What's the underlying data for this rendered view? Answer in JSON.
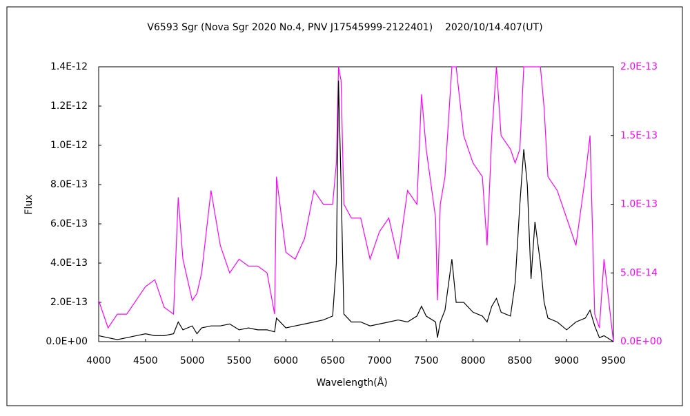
{
  "chart_data": {
    "type": "line",
    "title": "V6593 Sgr (Nova Sgr 2020 No.4, PNV J17545999-2122401)    2020/10/14.407(UT)",
    "x_label": "Wavelength(Å)",
    "y_label": "Flux",
    "x": [
      4000,
      4100,
      4200,
      4300,
      4400,
      4500,
      4600,
      4700,
      4800,
      4850,
      4900,
      5000,
      5050,
      5100,
      5200,
      5300,
      5400,
      5500,
      5600,
      5700,
      5800,
      5880,
      5900,
      6000,
      6100,
      6200,
      6300,
      6400,
      6500,
      6540,
      6563,
      6590,
      6620,
      6700,
      6800,
      6900,
      7000,
      7100,
      7200,
      7300,
      7400,
      7450,
      7500,
      7600,
      7620,
      7650,
      7700,
      7774,
      7820,
      7900,
      8000,
      8100,
      8150,
      8200,
      8250,
      8300,
      8400,
      8450,
      8500,
      8542,
      8580,
      8620,
      8662,
      8720,
      8760,
      8800,
      8900,
      9000,
      9100,
      9200,
      9250,
      9300,
      9350,
      9400,
      9500
    ],
    "series": [
      {
        "color": "#000000",
        "values": [
          3e-14,
          2e-14,
          1e-14,
          2e-14,
          3e-14,
          4e-14,
          3e-14,
          3e-14,
          4e-14,
          1e-13,
          6e-14,
          8e-14,
          4e-14,
          7e-14,
          8e-14,
          8e-14,
          9e-14,
          6e-14,
          7e-14,
          6e-14,
          6e-14,
          5e-14,
          1.2e-13,
          7e-14,
          8e-14,
          9e-14,
          1e-13,
          1.1e-13,
          1.3e-13,
          4e-13,
          1.33e-12,
          8e-13,
          1.4e-13,
          1e-13,
          1e-13,
          8e-14,
          9e-14,
          1e-13,
          1.1e-13,
          1e-13,
          1.3e-13,
          1.8e-13,
          1.3e-13,
          1e-13,
          2e-14,
          1e-13,
          1.6e-13,
          4.2e-13,
          2e-13,
          2e-13,
          1.5e-13,
          1.3e-13,
          1e-13,
          1.8e-13,
          2.2e-13,
          1.5e-13,
          1.3e-13,
          3e-13,
          7e-13,
          9.8e-13,
          8e-13,
          3.2e-13,
          6.1e-13,
          4e-13,
          2e-13,
          1.2e-13,
          1e-13,
          6e-14,
          1e-13,
          1.2e-13,
          1.6e-13,
          8e-14,
          2e-14,
          3e-14,
          0
        ]
      },
      {
        "color": "#ff00ff",
        "axis": "y2",
        "values": [
          3e-14,
          1e-14,
          2e-14,
          2e-14,
          3e-14,
          4e-14,
          4.5e-14,
          2.5e-14,
          2e-14,
          1.05e-13,
          6e-14,
          3e-14,
          3.5e-14,
          5e-14,
          1.1e-13,
          7e-14,
          5e-14,
          6e-14,
          5.5e-14,
          5.5e-14,
          5e-14,
          2e-14,
          1.2e-13,
          6.5e-14,
          6e-14,
          7.5e-14,
          1.1e-13,
          1e-13,
          1e-13,
          1.3e-13,
          2e-13,
          1.9e-13,
          1e-13,
          9e-14,
          9e-14,
          6e-14,
          8e-14,
          9e-14,
          6e-14,
          1.1e-13,
          1e-13,
          1.8e-13,
          1.4e-13,
          9e-14,
          3e-14,
          1e-13,
          1.2e-13,
          2e-13,
          2e-13,
          1.5e-13,
          1.3e-13,
          1.2e-13,
          7e-14,
          1.5e-13,
          2e-13,
          1.5e-13,
          1.4e-13,
          1.3e-13,
          1.4e-13,
          2e-13,
          2e-13,
          2e-13,
          2e-13,
          2e-13,
          1.7e-13,
          1.2e-13,
          1.1e-13,
          9e-14,
          7e-14,
          1.2e-13,
          1.5e-13,
          2e-14,
          1e-14,
          6e-14,
          0
        ]
      }
    ],
    "xlim": [
      4000,
      9500
    ],
    "xticks": [
      4000,
      4500,
      5000,
      5500,
      6000,
      6500,
      7000,
      7500,
      8000,
      8500,
      9000,
      9500
    ],
    "ylim": [
      0,
      1.4e-12
    ],
    "yticks": [
      {
        "value": 0,
        "label": "0.0E+00"
      },
      {
        "value": 2e-13,
        "label": "2.0E-13"
      },
      {
        "value": 4e-13,
        "label": "4.0E-13"
      },
      {
        "value": 6e-13,
        "label": "6.0E-13"
      },
      {
        "value": 8e-13,
        "label": "8.0E-13"
      },
      {
        "value": 1e-12,
        "label": "1.0E-12"
      },
      {
        "value": 1.2e-12,
        "label": "1.2E-12"
      },
      {
        "value": 1.4e-12,
        "label": "1.4E-12"
      }
    ],
    "y2lim": [
      0,
      2e-13
    ],
    "y2ticks": [
      {
        "value": 0,
        "label": "0.0E+00"
      },
      {
        "value": 5e-14,
        "label": "5.0E-14"
      },
      {
        "value": 1e-13,
        "label": "1.0E-13"
      },
      {
        "value": 1.5e-13,
        "label": "1.5E-13"
      },
      {
        "value": 2e-13,
        "label": "2.0E-13"
      }
    ],
    "y2_color": "#ff00ff"
  }
}
